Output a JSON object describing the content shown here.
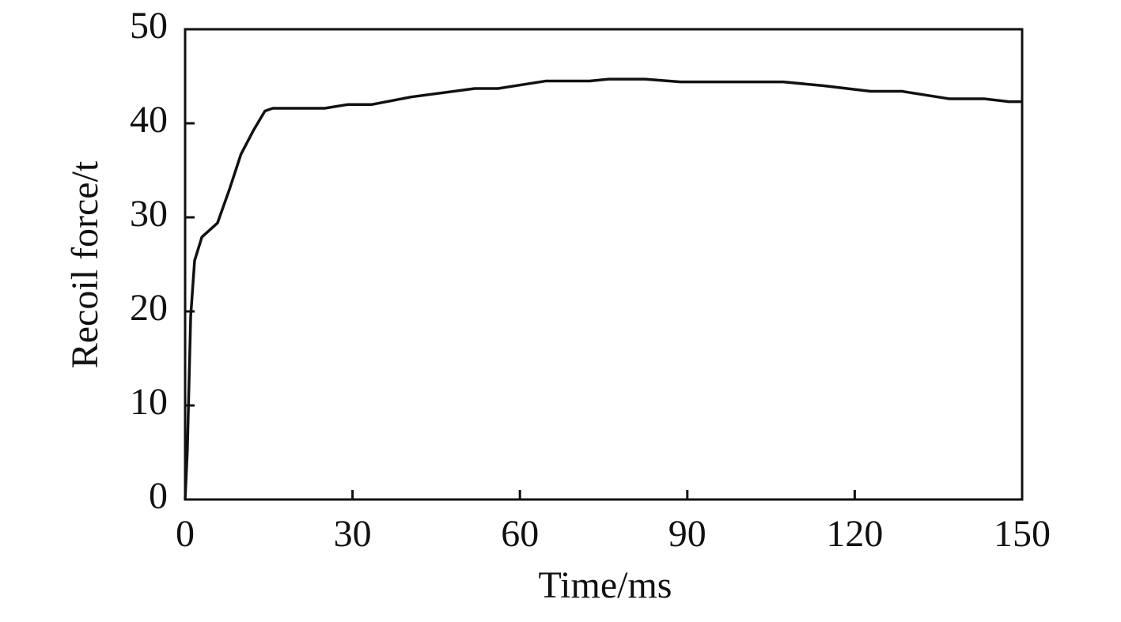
{
  "chart_data": {
    "type": "line",
    "x_label": "Time/ms",
    "y_label": "Recoil force/t",
    "x": [
      0,
      0.4,
      1,
      1.7,
      3,
      5.8,
      7.9,
      10,
      12.2,
      14.3,
      15.7,
      25,
      29.2,
      33.5,
      40.5,
      51.9,
      56.1,
      64.7,
      72.5,
      76,
      82.4,
      88.8,
      107.2,
      114.3,
      122.8,
      128.5,
      137,
      143.3,
      147.6,
      150
    ],
    "values": [
      0,
      5.2,
      19.5,
      25.4,
      27.9,
      29.4,
      32.9,
      36.7,
      39.2,
      41.3,
      41.6,
      41.6,
      42.0,
      42.0,
      42.8,
      43.7,
      43.7,
      44.5,
      44.5,
      44.7,
      44.7,
      44.4,
      44.4,
      44.0,
      43.4,
      43.4,
      42.6,
      42.6,
      42.3,
      42.3
    ],
    "color": "#111111",
    "xlim": [
      0,
      150
    ],
    "xticks": [
      0,
      30,
      60,
      90,
      120,
      150
    ],
    "ylim": [
      0,
      50
    ],
    "yticks": [
      0,
      10,
      20,
      30,
      40,
      50
    ]
  }
}
